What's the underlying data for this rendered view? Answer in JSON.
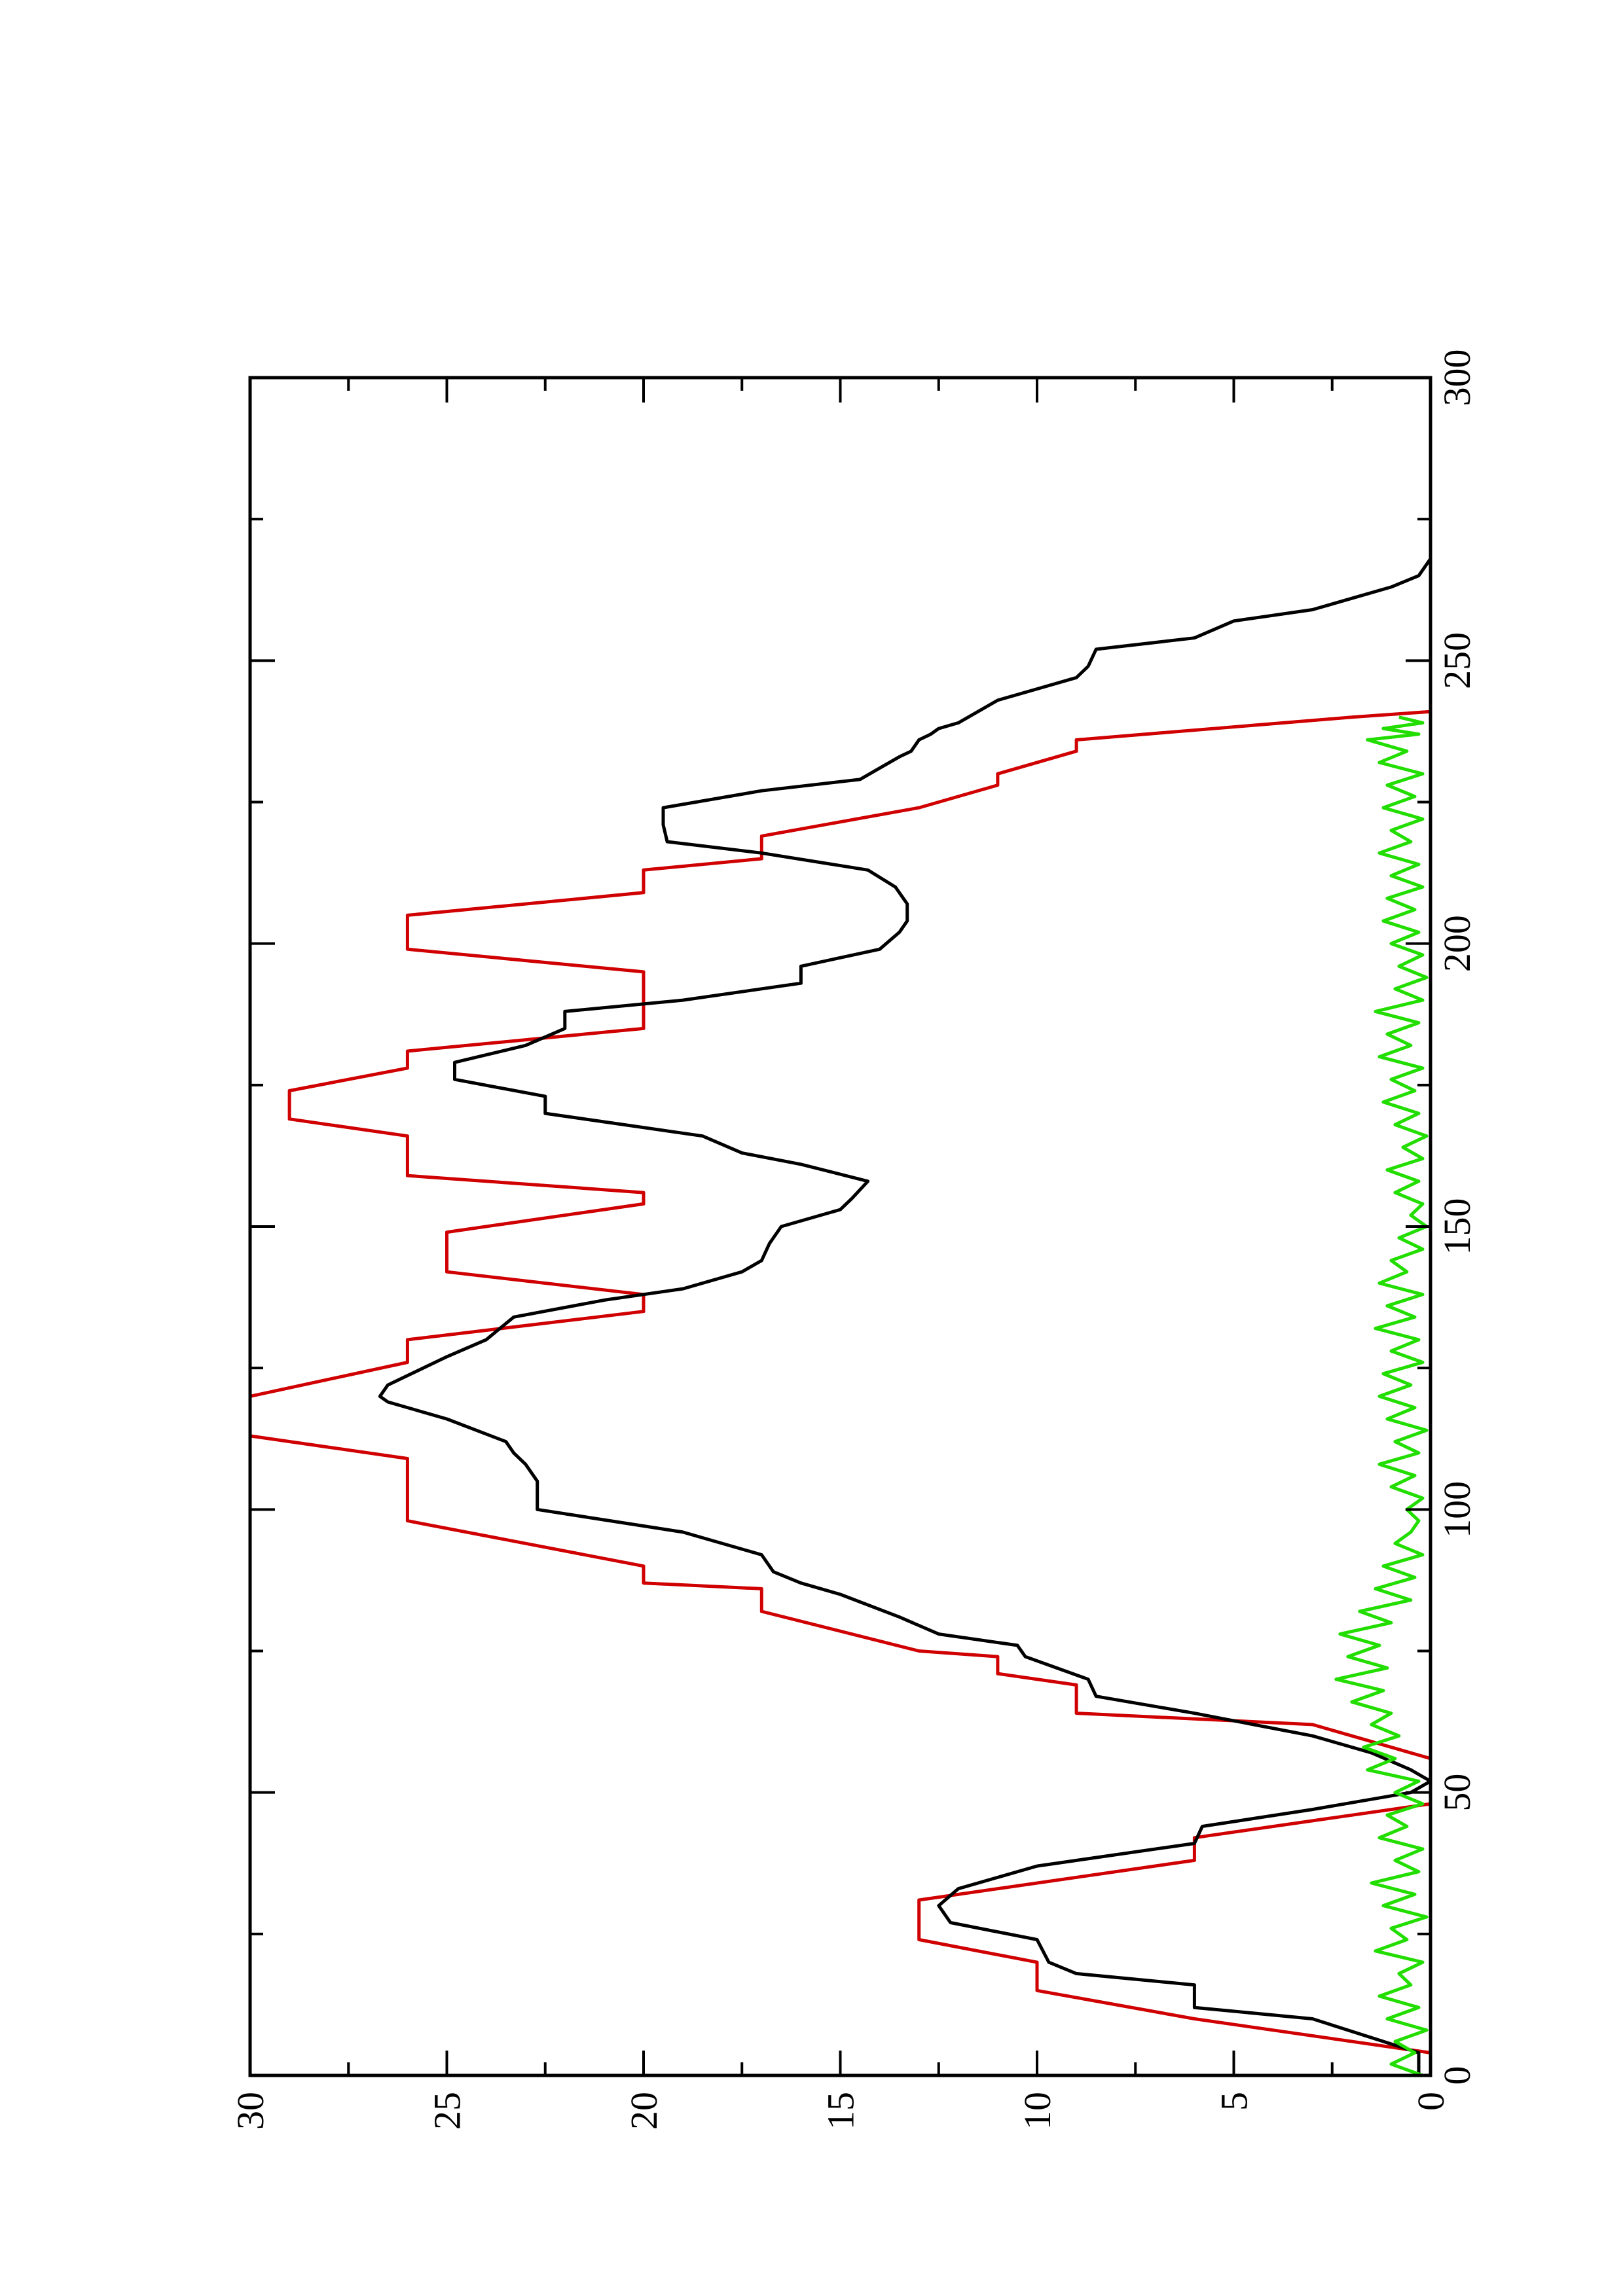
{
  "chart_data": {
    "type": "line",
    "title": "",
    "xlabel": "",
    "ylabel": "",
    "xlim": [
      0,
      300
    ],
    "ylim": [
      0,
      30
    ],
    "x_ticks": [
      0,
      50,
      100,
      150,
      200,
      250,
      300
    ],
    "y_ticks": [
      0,
      5,
      10,
      15,
      20,
      25,
      30
    ],
    "x_tick_labels": [
      "0",
      "50",
      "100",
      "150",
      "200",
      "250",
      "300"
    ],
    "y_tick_labels": [
      "0",
      "5",
      "10",
      "15",
      "20",
      "25",
      "30"
    ],
    "grid": false,
    "legend": "none",
    "orientation": "rotated-90-ccw",
    "series": [
      {
        "color": "#d00000",
        "points": [
          [
            0,
            0
          ],
          [
            4,
            0
          ],
          [
            10,
            6
          ],
          [
            15,
            10
          ],
          [
            20,
            10
          ],
          [
            24,
            13
          ],
          [
            31,
            13
          ],
          [
            38,
            6
          ],
          [
            42,
            6
          ],
          [
            48,
            0
          ],
          [
            56,
            0
          ],
          [
            62,
            3
          ],
          [
            64,
            9
          ],
          [
            69,
            9
          ],
          [
            71,
            11
          ],
          [
            74,
            11
          ],
          [
            75,
            13
          ],
          [
            82,
            17
          ],
          [
            86,
            17
          ],
          [
            87,
            20
          ],
          [
            90,
            20
          ],
          [
            98,
            26
          ],
          [
            109,
            26
          ],
          [
            113,
            30
          ],
          [
            120,
            30
          ],
          [
            126,
            26
          ],
          [
            130,
            26
          ],
          [
            135,
            20
          ],
          [
            138,
            20
          ],
          [
            142,
            25
          ],
          [
            149,
            25
          ],
          [
            154,
            20
          ],
          [
            156,
            20
          ],
          [
            159,
            26
          ],
          [
            166,
            26
          ],
          [
            169,
            29
          ],
          [
            174,
            29
          ],
          [
            178,
            26
          ],
          [
            181,
            26
          ],
          [
            185,
            20
          ],
          [
            195,
            20
          ],
          [
            199,
            26
          ],
          [
            203,
            26
          ],
          [
            205,
            26
          ],
          [
            209,
            20
          ],
          [
            213,
            20
          ],
          [
            215,
            17
          ],
          [
            219,
            17
          ],
          [
            224,
            13
          ],
          [
            228,
            11
          ],
          [
            230,
            11
          ],
          [
            234,
            9
          ],
          [
            236,
            9
          ],
          [
            240,
            2
          ],
          [
            241,
            0
          ],
          [
            250,
            0
          ]
        ]
      },
      {
        "color": "#000000",
        "points": [
          [
            0,
            0.3
          ],
          [
            4,
            0.3
          ],
          [
            10,
            3
          ],
          [
            12,
            6
          ],
          [
            16,
            6
          ],
          [
            18,
            9
          ],
          [
            20,
            9.7
          ],
          [
            24,
            10
          ],
          [
            27,
            12.2
          ],
          [
            30,
            12.5
          ],
          [
            33,
            12
          ],
          [
            37,
            10
          ],
          [
            41,
            6
          ],
          [
            44,
            5.8
          ],
          [
            47,
            3
          ],
          [
            50,
            0.5
          ],
          [
            52,
            0
          ],
          [
            54,
            0.5
          ],
          [
            57,
            1.5
          ],
          [
            60,
            3
          ],
          [
            64,
            6
          ],
          [
            67,
            8.5
          ],
          [
            70,
            8.7
          ],
          [
            74,
            10.3
          ],
          [
            76,
            10.5
          ],
          [
            78,
            12.5
          ],
          [
            81,
            13.5
          ],
          [
            85,
            15
          ],
          [
            87,
            16
          ],
          [
            89,
            16.7
          ],
          [
            92,
            17
          ],
          [
            96,
            19
          ],
          [
            100,
            22.7
          ],
          [
            105,
            22.7
          ],
          [
            108,
            23
          ],
          [
            110,
            23.3
          ],
          [
            112,
            23.5
          ],
          [
            116,
            25
          ],
          [
            119,
            26.5
          ],
          [
            120,
            26.7
          ],
          [
            122,
            26.5
          ],
          [
            127,
            25
          ],
          [
            130,
            24
          ],
          [
            134,
            23.3
          ],
          [
            137,
            21
          ],
          [
            139,
            19
          ],
          [
            142,
            17.5
          ],
          [
            144,
            17
          ],
          [
            147,
            16.8
          ],
          [
            150,
            16.5
          ],
          [
            153,
            15
          ],
          [
            155,
            14.7
          ],
          [
            158,
            14.3
          ],
          [
            161,
            16
          ],
          [
            163,
            17.5
          ],
          [
            166,
            18.5
          ],
          [
            168,
            20.5
          ],
          [
            170,
            22.5
          ],
          [
            173,
            22.5
          ],
          [
            176,
            24.8
          ],
          [
            179,
            24.8
          ],
          [
            182,
            23
          ],
          [
            185,
            22
          ],
          [
            188,
            22
          ],
          [
            190,
            19
          ],
          [
            193,
            16
          ],
          [
            196,
            16
          ],
          [
            199,
            14
          ],
          [
            202,
            13.5
          ],
          [
            204,
            13.3
          ],
          [
            207,
            13.3
          ],
          [
            210,
            13.6
          ],
          [
            213,
            14.3
          ],
          [
            216,
            17
          ],
          [
            218,
            19.4
          ],
          [
            221,
            19.5
          ],
          [
            224,
            19.5
          ],
          [
            227,
            17
          ],
          [
            229,
            14.5
          ],
          [
            231,
            14
          ],
          [
            233,
            13.5
          ],
          [
            234,
            13.2
          ],
          [
            236,
            13
          ],
          [
            237,
            12.7
          ],
          [
            238,
            12.5
          ],
          [
            239,
            12
          ],
          [
            241,
            11.5
          ],
          [
            243,
            11
          ],
          [
            245,
            10
          ],
          [
            247,
            9
          ],
          [
            249,
            8.7
          ],
          [
            252,
            8.5
          ],
          [
            254,
            6
          ],
          [
            257,
            5
          ],
          [
            259,
            3
          ],
          [
            261,
            2
          ],
          [
            263,
            1
          ],
          [
            265,
            0.3
          ],
          [
            268,
            0
          ],
          [
            270,
            0
          ]
        ]
      },
      {
        "color": "#22dd00",
        "points": [
          [
            0,
            0.2
          ],
          [
            2,
            1.0
          ],
          [
            4,
            0.4
          ],
          [
            6,
            0.9
          ],
          [
            8,
            0.1
          ],
          [
            10,
            1.1
          ],
          [
            12,
            0.3
          ],
          [
            14,
            1.3
          ],
          [
            16,
            0.5
          ],
          [
            18,
            0.8
          ],
          [
            20,
            0.2
          ],
          [
            22,
            1.4
          ],
          [
            24,
            0.6
          ],
          [
            26,
            1.0
          ],
          [
            28,
            0.1
          ],
          [
            30,
            1.2
          ],
          [
            32,
            0.4
          ],
          [
            34,
            1.5
          ],
          [
            36,
            0.3
          ],
          [
            38,
            0.9
          ],
          [
            40,
            0.2
          ],
          [
            42,
            1.3
          ],
          [
            44,
            0.6
          ],
          [
            46,
            1.1
          ],
          [
            48,
            0.2
          ],
          [
            50,
            0.9
          ],
          [
            52,
            0.3
          ],
          [
            54,
            1.6
          ],
          [
            56,
            0.9
          ],
          [
            58,
            1.7
          ],
          [
            60,
            0.8
          ],
          [
            62,
            1.5
          ],
          [
            64,
            1.0
          ],
          [
            66,
            2.0
          ],
          [
            68,
            1.2
          ],
          [
            70,
            2.4
          ],
          [
            72,
            1.1
          ],
          [
            74,
            2.1
          ],
          [
            76,
            1.3
          ],
          [
            78,
            2.3
          ],
          [
            80,
            1.0
          ],
          [
            82,
            1.8
          ],
          [
            84,
            0.5
          ],
          [
            86,
            1.4
          ],
          [
            88,
            0.4
          ],
          [
            90,
            1.2
          ],
          [
            92,
            0.2
          ],
          [
            94,
            0.9
          ],
          [
            96,
            0.5
          ],
          [
            98,
            0.3
          ],
          [
            100,
            0.6
          ],
          [
            102,
            0.2
          ],
          [
            104,
            1.0
          ],
          [
            106,
            0.4
          ],
          [
            108,
            1.3
          ],
          [
            110,
            0.3
          ],
          [
            112,
            0.9
          ],
          [
            114,
            0.1
          ],
          [
            116,
            1.1
          ],
          [
            118,
            0.4
          ],
          [
            120,
            1.3
          ],
          [
            122,
            0.5
          ],
          [
            124,
            1.2
          ],
          [
            126,
            0.2
          ],
          [
            128,
            1.0
          ],
          [
            130,
            0.3
          ],
          [
            132,
            1.4
          ],
          [
            134,
            0.4
          ],
          [
            136,
            1.1
          ],
          [
            138,
            0.2
          ],
          [
            140,
            1.3
          ],
          [
            142,
            0.6
          ],
          [
            144,
            1.0
          ],
          [
            146,
            0.2
          ],
          [
            148,
            0.8
          ],
          [
            150,
            0.1
          ],
          [
            152,
            0.5
          ],
          [
            154,
            0.2
          ],
          [
            156,
            0.9
          ],
          [
            158,
            0.3
          ],
          [
            160,
            1.1
          ],
          [
            162,
            0.2
          ],
          [
            164,
            0.7
          ],
          [
            166,
            0.1
          ],
          [
            168,
            0.9
          ],
          [
            170,
            0.3
          ],
          [
            172,
            1.2
          ],
          [
            174,
            0.4
          ],
          [
            176,
            1.0
          ],
          [
            178,
            0.2
          ],
          [
            180,
            1.3
          ],
          [
            182,
            0.5
          ],
          [
            184,
            1.1
          ],
          [
            186,
            0.3
          ],
          [
            188,
            1.4
          ],
          [
            190,
            0.2
          ],
          [
            192,
            0.9
          ],
          [
            194,
            0.1
          ],
          [
            196,
            0.8
          ],
          [
            198,
            0.2
          ],
          [
            200,
            1.0
          ],
          [
            202,
            0.3
          ],
          [
            204,
            1.2
          ],
          [
            206,
            0.4
          ],
          [
            208,
            1.1
          ],
          [
            210,
            0.2
          ],
          [
            212,
            1.0
          ],
          [
            214,
            0.3
          ],
          [
            216,
            1.3
          ],
          [
            218,
            0.5
          ],
          [
            220,
            1.0
          ],
          [
            222,
            0.2
          ],
          [
            224,
            1.2
          ],
          [
            226,
            0.4
          ],
          [
            228,
            1.1
          ],
          [
            230,
            0.2
          ],
          [
            232,
            1.3
          ],
          [
            234,
            0.6
          ],
          [
            236,
            1.6
          ],
          [
            237,
            0.3
          ],
          [
            238,
            1.2
          ],
          [
            239,
            0.2
          ],
          [
            240,
            0.8
          ]
        ]
      }
    ]
  }
}
